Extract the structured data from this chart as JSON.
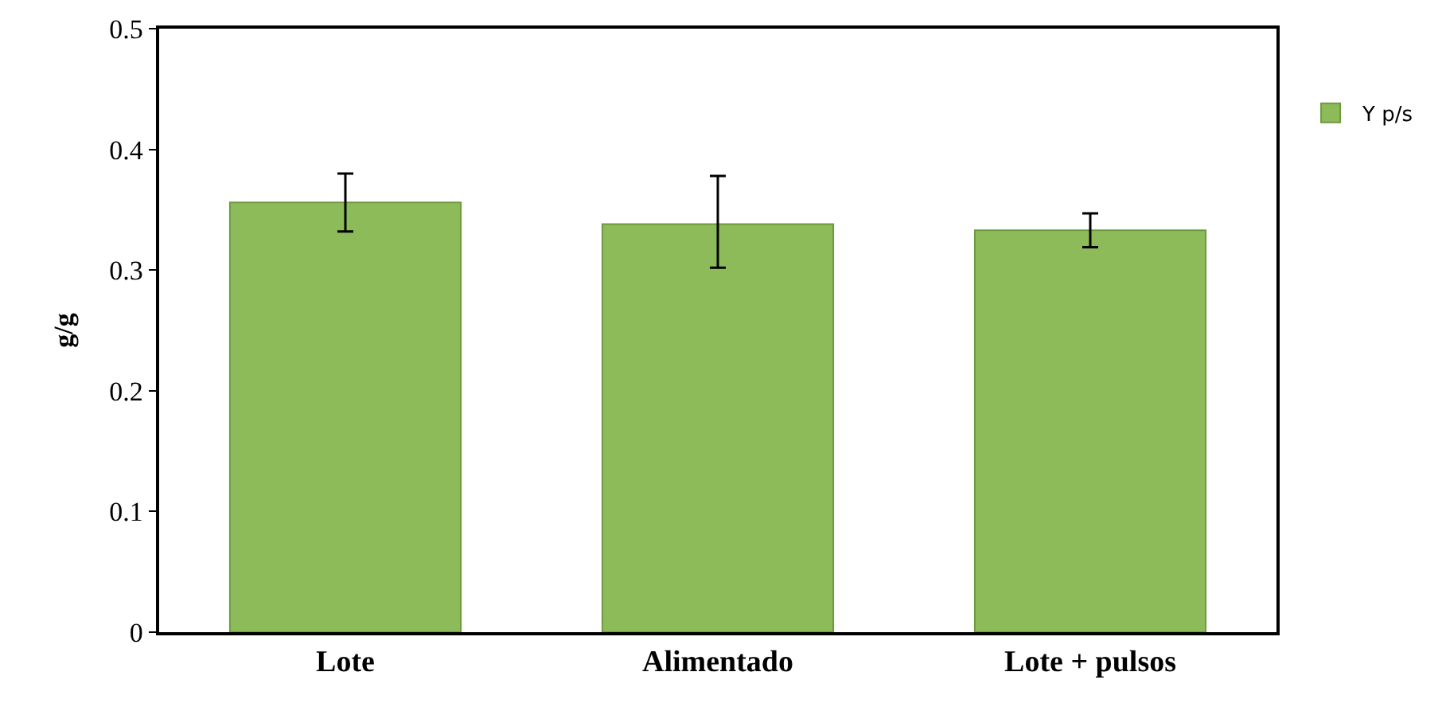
{
  "chart_data": {
    "type": "bar",
    "ylabel": "g/g",
    "categories": [
      "Lote",
      "Alimentado",
      "Lote + pulsos"
    ],
    "series": [
      {
        "name": "Y p/s",
        "color": "#8dbb5a",
        "values": [
          0.356,
          0.338,
          0.333
        ],
        "errors": [
          [
            0.332,
            0.38
          ],
          [
            0.302,
            0.378
          ],
          [
            0.319,
            0.347
          ]
        ]
      }
    ],
    "ylim": [
      0,
      0.5
    ],
    "yticks": [
      0,
      0.1,
      0.2,
      0.3,
      0.4,
      0.5
    ],
    "grid": false,
    "legend": "right"
  }
}
